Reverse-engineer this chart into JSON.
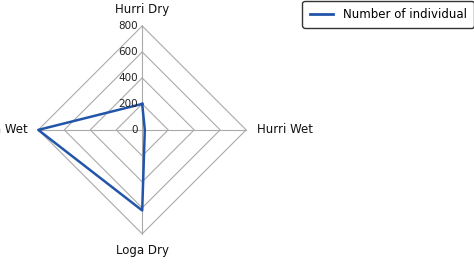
{
  "categories": [
    "Hurri Dry",
    "Hurri Wet",
    "Loga Dry",
    "Loga Wet"
  ],
  "values": [
    200,
    20,
    620,
    800
  ],
  "max_val": 800,
  "grid_vals": [
    200,
    400,
    600,
    800
  ],
  "grid_label_vals": [
    0,
    200,
    400,
    600,
    800
  ],
  "line_color": "#2255aa",
  "grid_color": "#aaaaaa",
  "legend_label": "Number of individual",
  "figsize": [
    4.74,
    2.65
  ],
  "dpi": 100,
  "bg_color": "#ffffff",
  "label_fontsize": 8.5,
  "tick_fontsize": 7.5
}
